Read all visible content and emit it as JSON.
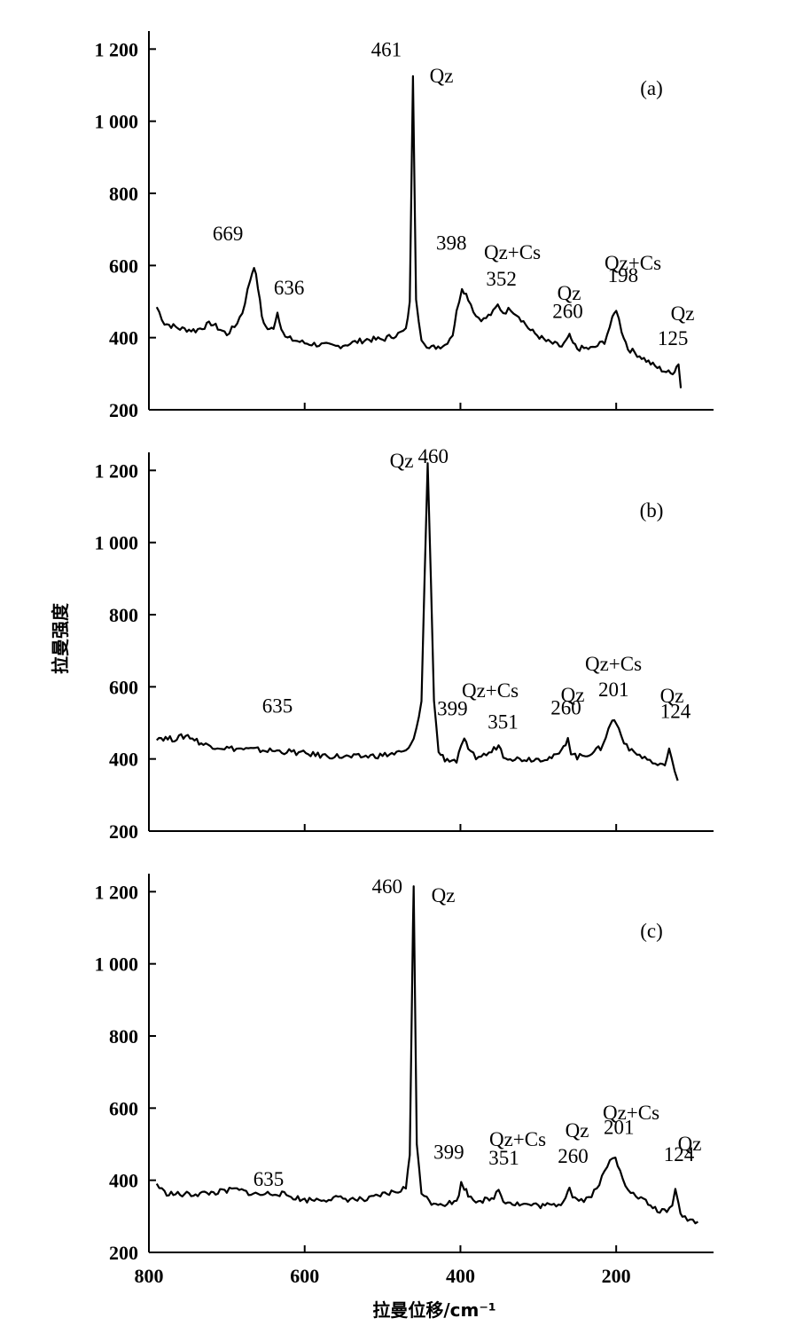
{
  "chart_data": [
    {
      "type": "line",
      "panel_label": "(a)",
      "xlim": [
        800,
        75
      ],
      "ylim": [
        200,
        1250
      ],
      "yticks": [
        200,
        400,
        600,
        800,
        1000,
        1200
      ],
      "ytick_labels": [
        "200",
        "400",
        "600",
        "800",
        "1 000",
        "1 200"
      ],
      "xticks": [
        800,
        600,
        400,
        200
      ],
      "baseline": [
        [
          790,
          485
        ],
        [
          780,
          440
        ],
        [
          760,
          425
        ],
        [
          740,
          420
        ],
        [
          720,
          440
        ],
        [
          700,
          410
        ],
        [
          690,
          430
        ],
        [
          680,
          470
        ],
        [
          670,
          560
        ],
        [
          665,
          600
        ],
        [
          660,
          540
        ],
        [
          655,
          460
        ],
        [
          650,
          430
        ],
        [
          645,
          420
        ],
        [
          640,
          430
        ],
        [
          635,
          470
        ],
        [
          630,
          430
        ],
        [
          625,
          400
        ],
        [
          600,
          385
        ],
        [
          560,
          375
        ],
        [
          520,
          395
        ],
        [
          500,
          395
        ],
        [
          480,
          410
        ],
        [
          470,
          420
        ],
        [
          465,
          500
        ],
        [
          461,
          1125
        ],
        [
          457,
          500
        ],
        [
          450,
          400
        ],
        [
          440,
          370
        ],
        [
          420,
          380
        ],
        [
          410,
          410
        ],
        [
          405,
          470
        ],
        [
          398,
          540
        ],
        [
          390,
          510
        ],
        [
          380,
          460
        ],
        [
          370,
          450
        ],
        [
          358,
          470
        ],
        [
          352,
          490
        ],
        [
          345,
          470
        ],
        [
          335,
          480
        ],
        [
          325,
          460
        ],
        [
          310,
          420
        ],
        [
          290,
          390
        ],
        [
          270,
          375
        ],
        [
          262,
          395
        ],
        [
          260,
          410
        ],
        [
          258,
          390
        ],
        [
          250,
          370
        ],
        [
          230,
          370
        ],
        [
          215,
          390
        ],
        [
          205,
          450
        ],
        [
          200,
          480
        ],
        [
          193,
          420
        ],
        [
          185,
          370
        ],
        [
          170,
          350
        ],
        [
          150,
          320
        ],
        [
          130,
          300
        ],
        [
          125,
          310
        ],
        [
          120,
          330
        ],
        [
          117,
          260
        ]
      ],
      "peaks": [
        {
          "x": 461,
          "y": 1150,
          "label": "461"
        },
        {
          "x": 669,
          "y": 640,
          "label": "669"
        },
        {
          "x": 636,
          "y": 490,
          "label": "636"
        },
        {
          "x": 398,
          "y": 550,
          "label": "398"
        },
        {
          "x": 352,
          "y": 490,
          "label": "352"
        },
        {
          "x": 260,
          "y": 400,
          "label": "260"
        },
        {
          "x": 198,
          "y": 480,
          "label": "198"
        },
        {
          "x": 125,
          "y": 330,
          "label": "125"
        }
      ],
      "annotations": [
        {
          "id": "qz_461",
          "text": "Qz"
        },
        {
          "id": "qzcs_352",
          "text": "Qz+Cs"
        },
        {
          "id": "qz_260",
          "text": "Qz"
        },
        {
          "id": "qzcs_198",
          "text": "Qz+Cs"
        },
        {
          "id": "qz_125",
          "text": "Qz"
        }
      ]
    },
    {
      "type": "line",
      "panel_label": "(b)",
      "xlim": [
        800,
        75
      ],
      "ylim": [
        200,
        1250
      ],
      "yticks": [
        200,
        400,
        600,
        800,
        1000,
        1200
      ],
      "ytick_labels": [
        "200",
        "400",
        "600",
        "800",
        "1 000",
        "1 200"
      ],
      "xticks": [
        800,
        600,
        400,
        200
      ],
      "baseline": [
        [
          790,
          460
        ],
        [
          770,
          455
        ],
        [
          750,
          465
        ],
        [
          730,
          440
        ],
        [
          700,
          430
        ],
        [
          660,
          425
        ],
        [
          620,
          420
        ],
        [
          580,
          410
        ],
        [
          540,
          405
        ],
        [
          500,
          410
        ],
        [
          470,
          420
        ],
        [
          460,
          450
        ],
        [
          450,
          560
        ],
        [
          446,
          900
        ],
        [
          442,
          1220
        ],
        [
          438,
          900
        ],
        [
          434,
          560
        ],
        [
          428,
          420
        ],
        [
          420,
          400
        ],
        [
          405,
          395
        ],
        [
          399,
          430
        ],
        [
          395,
          460
        ],
        [
          390,
          420
        ],
        [
          380,
          405
        ],
        [
          370,
          410
        ],
        [
          360,
          420
        ],
        [
          351,
          440
        ],
        [
          345,
          410
        ],
        [
          330,
          400
        ],
        [
          300,
          400
        ],
        [
          280,
          405
        ],
        [
          270,
          420
        ],
        [
          265,
          445
        ],
        [
          262,
          460
        ],
        [
          258,
          420
        ],
        [
          250,
          405
        ],
        [
          240,
          410
        ],
        [
          220,
          430
        ],
        [
          210,
          480
        ],
        [
          205,
          510
        ],
        [
          200,
          500
        ],
        [
          190,
          450
        ],
        [
          180,
          420
        ],
        [
          170,
          410
        ],
        [
          160,
          400
        ],
        [
          150,
          385
        ],
        [
          140,
          380
        ],
        [
          135,
          400
        ],
        [
          132,
          430
        ],
        [
          129,
          400
        ],
        [
          125,
          360
        ],
        [
          121,
          340
        ]
      ],
      "peaks": [
        {
          "x": 460,
          "y": 1220,
          "label": "460"
        },
        {
          "x": 635,
          "y": 430,
          "label": "635"
        },
        {
          "x": 399,
          "y": 460,
          "label": "399"
        },
        {
          "x": 351,
          "y": 440,
          "label": "351"
        },
        {
          "x": 260,
          "y": 460,
          "label": "260"
        },
        {
          "x": 201,
          "y": 510,
          "label": "201"
        },
        {
          "x": 124,
          "y": 430,
          "label": "124"
        }
      ],
      "annotations": [
        {
          "id": "qz_460",
          "text": "Qz"
        },
        {
          "id": "qzcs_399",
          "text": "Qz+Cs"
        },
        {
          "id": "qz_260",
          "text": "Qz"
        },
        {
          "id": "qzcs_201",
          "text": "Qz+Cs"
        },
        {
          "id": "qz_124",
          "text": "Qz"
        }
      ]
    },
    {
      "type": "line",
      "panel_label": "(c)",
      "xlim": [
        800,
        75
      ],
      "ylim": [
        200,
        1250
      ],
      "yticks": [
        200,
        400,
        600,
        800,
        1000,
        1200
      ],
      "ytick_labels": [
        "200",
        "400",
        "600",
        "800",
        "1 000",
        "1 200"
      ],
      "xticks": [
        800,
        600,
        400,
        200
      ],
      "xlabel": "拉曼位移/cm⁻¹",
      "ylabel": "拉曼强度",
      "baseline": [
        [
          790,
          390
        ],
        [
          780,
          365
        ],
        [
          760,
          360
        ],
        [
          740,
          362
        ],
        [
          720,
          365
        ],
        [
          700,
          370
        ],
        [
          690,
          375
        ],
        [
          660,
          360
        ],
        [
          635,
          365
        ],
        [
          600,
          345
        ],
        [
          560,
          350
        ],
        [
          520,
          345
        ],
        [
          500,
          360
        ],
        [
          480,
          370
        ],
        [
          470,
          380
        ],
        [
          465,
          470
        ],
        [
          461,
          1100
        ],
        [
          460,
          1215
        ],
        [
          456,
          500
        ],
        [
          450,
          370
        ],
        [
          440,
          340
        ],
        [
          420,
          335
        ],
        [
          405,
          340
        ],
        [
          399,
          390
        ],
        [
          395,
          380
        ],
        [
          390,
          360
        ],
        [
          380,
          345
        ],
        [
          360,
          345
        ],
        [
          351,
          375
        ],
        [
          345,
          345
        ],
        [
          330,
          335
        ],
        [
          300,
          330
        ],
        [
          280,
          330
        ],
        [
          268,
          340
        ],
        [
          262,
          375
        ],
        [
          260,
          385
        ],
        [
          256,
          355
        ],
        [
          248,
          345
        ],
        [
          235,
          350
        ],
        [
          225,
          380
        ],
        [
          215,
          420
        ],
        [
          208,
          455
        ],
        [
          201,
          460
        ],
        [
          195,
          430
        ],
        [
          188,
          390
        ],
        [
          178,
          360
        ],
        [
          165,
          345
        ],
        [
          150,
          320
        ],
        [
          135,
          310
        ],
        [
          128,
          330
        ],
        [
          124,
          380
        ],
        [
          120,
          330
        ],
        [
          115,
          300
        ],
        [
          105,
          290
        ],
        [
          95,
          285
        ]
      ],
      "peaks": [
        {
          "x": 460,
          "y": 1215,
          "label": "460"
        },
        {
          "x": 635,
          "y": 365,
          "label": "635"
        },
        {
          "x": 399,
          "y": 390,
          "label": "399"
        },
        {
          "x": 351,
          "y": 375,
          "label": "351"
        },
        {
          "x": 260,
          "y": 385,
          "label": "260"
        },
        {
          "x": 201,
          "y": 460,
          "label": "201"
        },
        {
          "x": 124,
          "y": 380,
          "label": "124"
        }
      ],
      "annotations": [
        {
          "id": "qz_460",
          "text": "Qz"
        },
        {
          "id": "qzcs_351",
          "text": "Qz+Cs"
        },
        {
          "id": "qz_260",
          "text": "Qz"
        },
        {
          "id": "qzcs_201",
          "text": "Qz+Cs"
        },
        {
          "id": "qz_124",
          "text": "Qz"
        }
      ]
    }
  ]
}
